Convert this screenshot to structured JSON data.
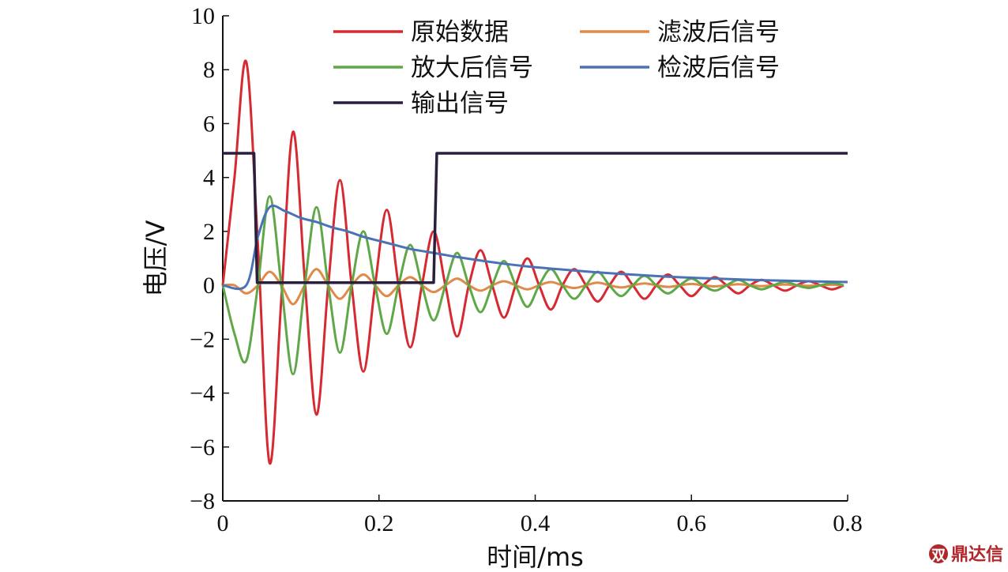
{
  "chart_data": {
    "type": "line",
    "xlabel": "时间/ms",
    "ylabel": "电压/V",
    "xlim": [
      0,
      0.8
    ],
    "ylim": [
      -8,
      10
    ],
    "xticks": [
      0,
      0.2,
      0.4,
      0.6,
      0.8
    ],
    "yticks": [
      -8,
      -6,
      -4,
      -2,
      0,
      2,
      4,
      6,
      8,
      10
    ],
    "grid": false,
    "legend_position": "top-right",
    "series": [
      {
        "name": "原始数据",
        "color": "#d62a33",
        "x": [
          0,
          0.015,
          0.03,
          0.045,
          0.06,
          0.075,
          0.09,
          0.105,
          0.12,
          0.135,
          0.15,
          0.165,
          0.18,
          0.195,
          0.21,
          0.225,
          0.24,
          0.255,
          0.27,
          0.285,
          0.3,
          0.315,
          0.33,
          0.345,
          0.36,
          0.375,
          0.39,
          0.405,
          0.42,
          0.435,
          0.45,
          0.465,
          0.48,
          0.495,
          0.51,
          0.525,
          0.54,
          0.555,
          0.57,
          0.585,
          0.6,
          0.615,
          0.63,
          0.645,
          0.66,
          0.675,
          0.69,
          0.705,
          0.72,
          0.735,
          0.75,
          0.765,
          0.78,
          0.795
        ],
        "y": [
          0,
          4.0,
          8.3,
          1.5,
          -6.6,
          -0.5,
          5.7,
          0.2,
          -4.8,
          0,
          3.9,
          0,
          -3.2,
          0,
          2.8,
          0,
          -2.3,
          0,
          2.0,
          0,
          -1.9,
          0,
          1.3,
          0,
          -1.2,
          0,
          1.0,
          0,
          -0.9,
          0,
          0.6,
          0,
          -0.6,
          0,
          0.5,
          0,
          -0.5,
          0,
          0.4,
          0,
          -0.4,
          0,
          0.3,
          0,
          -0.3,
          0,
          0.2,
          0,
          -0.2,
          0,
          0.15,
          0,
          -0.15,
          0
        ]
      },
      {
        "name": "滤波后信号",
        "color": "#e08a4a",
        "x": [
          0,
          0.015,
          0.03,
          0.045,
          0.06,
          0.075,
          0.09,
          0.105,
          0.12,
          0.135,
          0.15,
          0.165,
          0.18,
          0.195,
          0.21,
          0.225,
          0.24,
          0.255,
          0.27,
          0.285,
          0.3,
          0.315,
          0.33,
          0.345,
          0.36,
          0.375,
          0.39,
          0.405,
          0.42,
          0.435,
          0.45,
          0.465,
          0.48,
          0.495,
          0.51,
          0.525,
          0.54,
          0.555,
          0.57,
          0.585,
          0.6,
          0.615,
          0.63,
          0.645,
          0.66,
          0.675,
          0.69,
          0.705,
          0.72,
          0.735,
          0.75,
          0.765,
          0.78,
          0.795
        ],
        "y": [
          0,
          0,
          -0.3,
          0,
          0.5,
          0,
          -0.7,
          0,
          0.6,
          0,
          -0.5,
          0,
          0.4,
          0,
          -0.4,
          0,
          0.3,
          0,
          -0.25,
          0,
          0.25,
          0,
          -0.2,
          0,
          0.15,
          0,
          -0.15,
          0,
          0.12,
          0,
          -0.1,
          0,
          0.1,
          0,
          -0.08,
          0,
          0.07,
          0,
          -0.06,
          0,
          0.05,
          0,
          -0.04,
          0,
          0.04,
          0,
          -0.03,
          0,
          0.03,
          0,
          -0.02,
          0,
          0.02,
          0
        ]
      },
      {
        "name": "放大后信号",
        "color": "#5fa848",
        "x": [
          0,
          0.015,
          0.03,
          0.045,
          0.06,
          0.075,
          0.09,
          0.105,
          0.12,
          0.135,
          0.15,
          0.165,
          0.18,
          0.195,
          0.21,
          0.225,
          0.24,
          0.255,
          0.27,
          0.285,
          0.3,
          0.315,
          0.33,
          0.345,
          0.36,
          0.375,
          0.39,
          0.405,
          0.42,
          0.435,
          0.45,
          0.465,
          0.48,
          0.495,
          0.51,
          0.525,
          0.54,
          0.555,
          0.57,
          0.585,
          0.6,
          0.615,
          0.63,
          0.645,
          0.66,
          0.675,
          0.69,
          0.705,
          0.72,
          0.735,
          0.75,
          0.765,
          0.78,
          0.795
        ],
        "y": [
          0,
          -1.8,
          -2.8,
          0,
          3.3,
          0,
          -3.3,
          0,
          2.9,
          0,
          -2.5,
          0,
          2.0,
          0,
          -1.8,
          0,
          1.5,
          0,
          -1.3,
          0,
          1.2,
          0,
          -1.0,
          0,
          0.9,
          0,
          -0.8,
          0,
          0.6,
          0,
          -0.5,
          0,
          0.5,
          0,
          -0.4,
          0,
          0.35,
          0,
          -0.3,
          0,
          0.25,
          0,
          -0.2,
          0,
          0.2,
          0,
          -0.15,
          0,
          0.13,
          0,
          -0.1,
          0,
          0.08,
          0
        ]
      },
      {
        "name": "检波后信号",
        "color": "#4a72b5",
        "x": [
          0,
          0.03,
          0.045,
          0.06,
          0.08,
          0.1,
          0.12,
          0.14,
          0.16,
          0.18,
          0.2,
          0.22,
          0.24,
          0.26,
          0.28,
          0.3,
          0.33,
          0.36,
          0.39,
          0.42,
          0.45,
          0.48,
          0.51,
          0.54,
          0.57,
          0.6,
          0.63,
          0.66,
          0.69,
          0.72,
          0.75,
          0.78,
          0.8
        ],
        "y": [
          0,
          0,
          1.8,
          2.9,
          2.75,
          2.5,
          2.35,
          2.15,
          2.0,
          1.8,
          1.65,
          1.5,
          1.35,
          1.25,
          1.15,
          1.05,
          0.92,
          0.8,
          0.7,
          0.62,
          0.55,
          0.48,
          0.42,
          0.37,
          0.32,
          0.28,
          0.25,
          0.22,
          0.19,
          0.17,
          0.15,
          0.13,
          0.12
        ]
      },
      {
        "name": "输出信号",
        "color": "#2a1f3d",
        "x": [
          0,
          0.04,
          0.044,
          0.27,
          0.274,
          0.8
        ],
        "y": [
          4.9,
          4.9,
          0.1,
          0.1,
          4.9,
          4.9
        ]
      }
    ]
  },
  "watermark": {
    "text": "鼎达信"
  }
}
